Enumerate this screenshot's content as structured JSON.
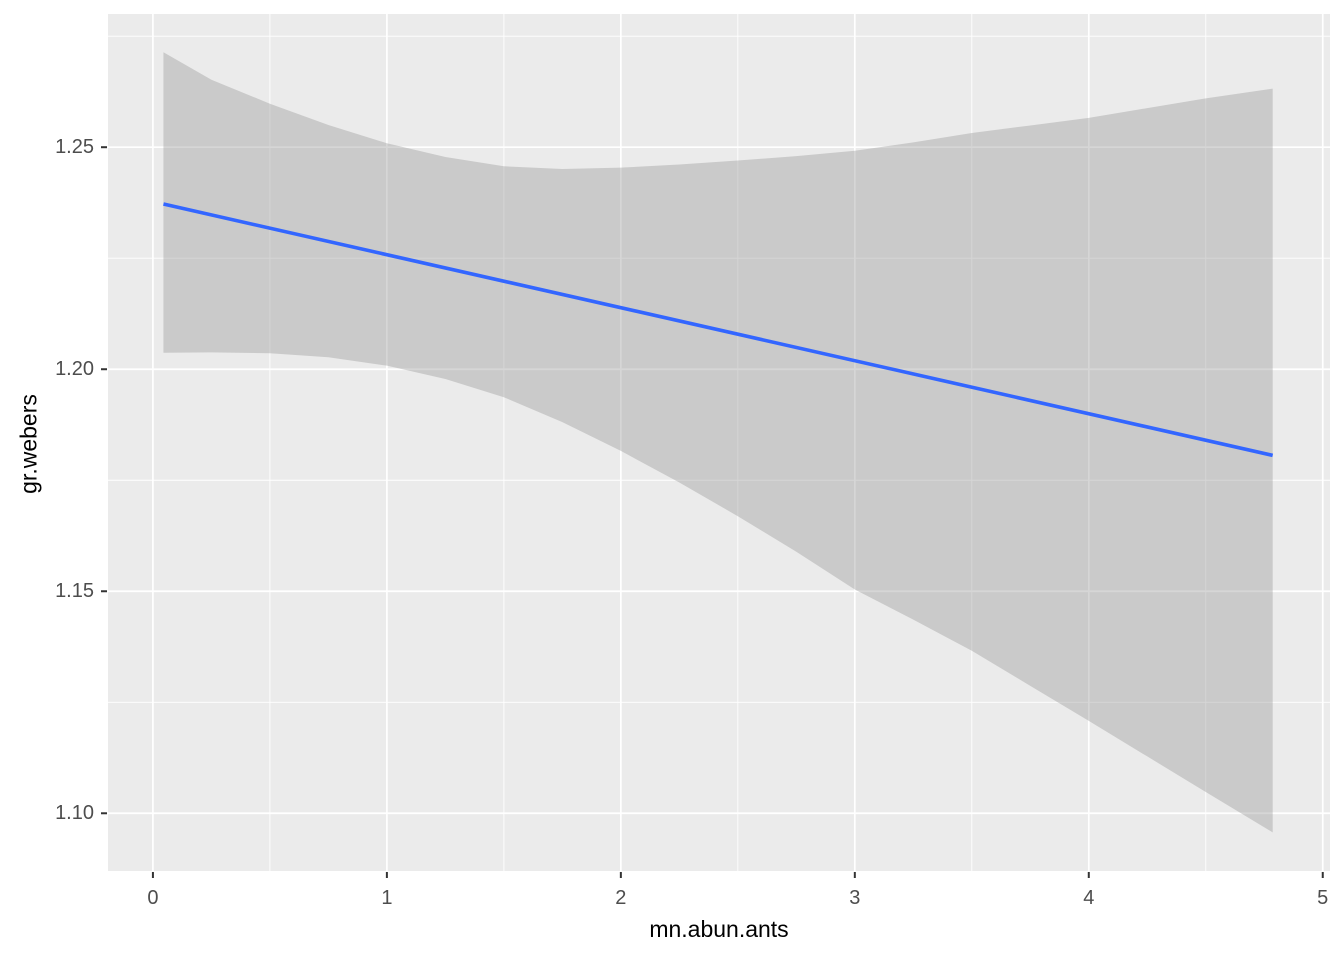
{
  "figure": {
    "background_color": "#ffffff"
  },
  "chart_data": {
    "type": "line",
    "subtype": "regression-line-with-confidence-ribbon",
    "title": "",
    "xlabel": "mn.abun.ants",
    "ylabel": "gr.webers",
    "x_domain": [
      -0.192,
      5.031
    ],
    "y_domain": [
      1.087,
      1.28
    ],
    "x_ticks": [
      {
        "value": 0,
        "label": "0"
      },
      {
        "value": 1,
        "label": "1"
      },
      {
        "value": 2,
        "label": "2"
      },
      {
        "value": 3,
        "label": "3"
      },
      {
        "value": 4,
        "label": "4"
      },
      {
        "value": 5,
        "label": "5"
      }
    ],
    "y_ticks": [
      {
        "value": 1.1,
        "label": "1.10"
      },
      {
        "value": 1.15,
        "label": "1.15"
      },
      {
        "value": 1.2,
        "label": "1.20"
      },
      {
        "value": 1.25,
        "label": "1.25"
      }
    ],
    "x_minor_ticks": [
      0.5,
      1.5,
      2.5,
      3.5,
      4.5
    ],
    "y_minor_ticks": [
      1.125,
      1.175,
      1.225,
      1.275
    ],
    "grid": true,
    "legend": "none",
    "series": [
      {
        "name": "fitted-regression-line",
        "type": "line",
        "x": [
          0.045,
          4.786
        ],
        "y": [
          1.2372,
          1.1806
        ]
      }
    ],
    "ribbon": {
      "name": "confidence-interval",
      "x": [
        0.045,
        0.25,
        0.5,
        0.75,
        1.0,
        1.25,
        1.5,
        1.75,
        2.0,
        2.25,
        2.5,
        2.75,
        3.0,
        3.25,
        3.5,
        3.75,
        4.0,
        4.25,
        4.5,
        4.786
      ],
      "upper": [
        1.2714,
        1.2652,
        1.2598,
        1.255,
        1.2509,
        1.2478,
        1.2457,
        1.2451,
        1.2454,
        1.2461,
        1.247,
        1.248,
        1.2492,
        1.2511,
        1.2532,
        1.2549,
        1.2566,
        1.2588,
        1.261,
        1.2632
      ],
      "lower": [
        1.2037,
        1.2038,
        1.2036,
        1.2027,
        1.2008,
        1.1978,
        1.1937,
        1.1881,
        1.1816,
        1.1745,
        1.1669,
        1.1589,
        1.1504,
        1.1436,
        1.1366,
        1.1287,
        1.1208,
        1.1128,
        1.1048,
        1.0957
      ]
    },
    "colors": {
      "panel_background": "#ebebeb",
      "grid_major": "#ffffff",
      "grid_minor": "#ffffff",
      "ribbon_fill": "#999999",
      "ribbon_opacity": 0.4,
      "line_color": "#3366ff",
      "tick_mark_color": "#333333",
      "tick_label_color": "#4d4d4d",
      "axis_title_color": "#000000"
    }
  }
}
